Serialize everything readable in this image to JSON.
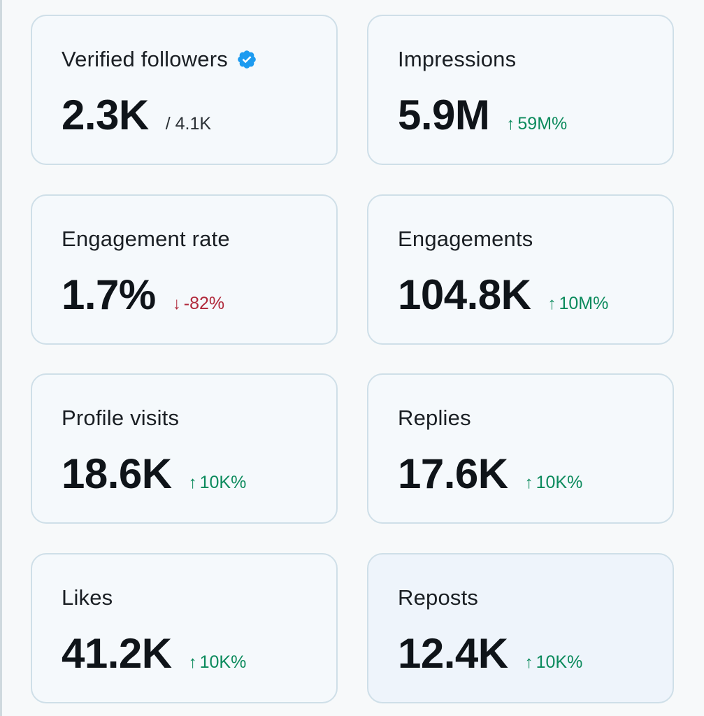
{
  "colors": {
    "positive": "#0b8a5c",
    "negative": "#b0283a",
    "verified": "#1d9bf0",
    "card_border": "#cfdfe8"
  },
  "cards": [
    {
      "title": "Verified followers",
      "value": "2.3K",
      "sub": "/ 4.1K",
      "icon": "verified-badge-icon"
    },
    {
      "title": "Impressions",
      "value": "5.9M",
      "delta": "59M%",
      "direction": "up",
      "arrow": "↑"
    },
    {
      "title": "Engagement rate",
      "value": "1.7%",
      "delta": "-82%",
      "direction": "down",
      "arrow": "↓"
    },
    {
      "title": "Engagements",
      "value": "104.8K",
      "delta": "10M%",
      "direction": "up",
      "arrow": "↑"
    },
    {
      "title": "Profile visits",
      "value": "18.6K",
      "delta": "10K%",
      "direction": "up",
      "arrow": "↑"
    },
    {
      "title": "Replies",
      "value": "17.6K",
      "delta": "10K%",
      "direction": "up",
      "arrow": "↑"
    },
    {
      "title": "Likes",
      "value": "41.2K",
      "delta": "10K%",
      "direction": "up",
      "arrow": "↑"
    },
    {
      "title": "Reposts",
      "value": "12.4K",
      "delta": "10K%",
      "direction": "up",
      "arrow": "↑"
    }
  ]
}
